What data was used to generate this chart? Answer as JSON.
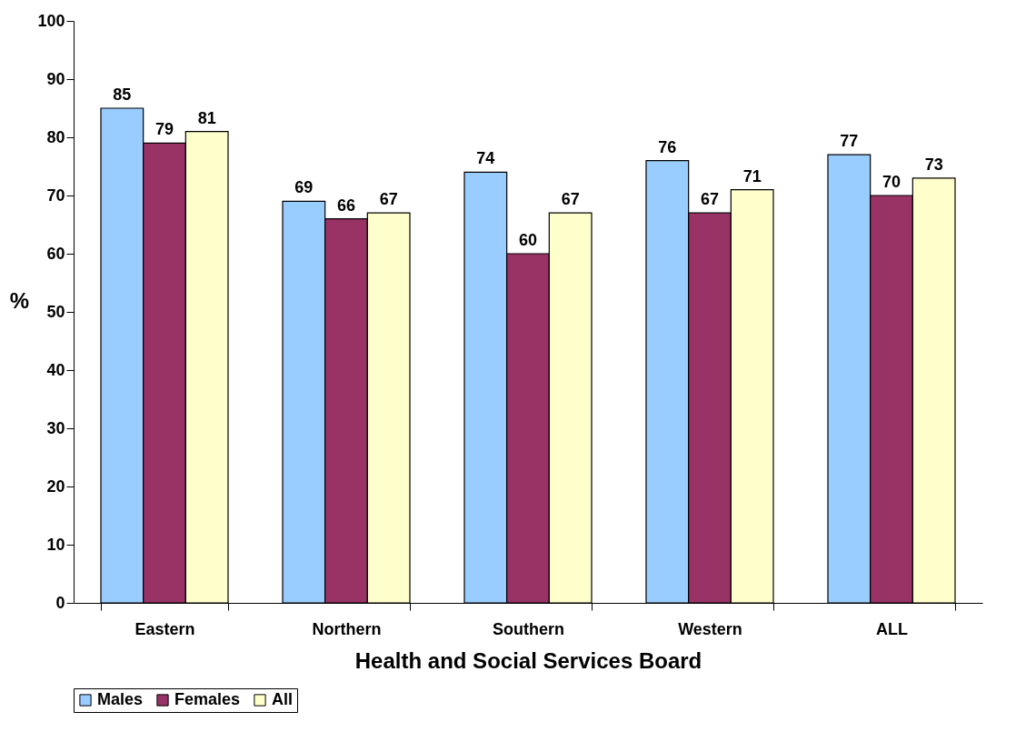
{
  "chart_data": {
    "type": "bar",
    "xlabel": "Health and Social Services Board",
    "ylabel": "%",
    "categories": [
      "Eastern",
      "Northern",
      "Southern",
      "Western",
      "ALL"
    ],
    "series": [
      {
        "name": "Males",
        "color": "#99ccff",
        "values": [
          85,
          69,
          74,
          76,
          77
        ]
      },
      {
        "name": "Females",
        "color": "#993366",
        "values": [
          79,
          66,
          60,
          67,
          70
        ]
      },
      {
        "name": "All",
        "color": "#ffffcc",
        "values": [
          81,
          67,
          67,
          71,
          73
        ]
      }
    ],
    "ylim": [
      0,
      100
    ],
    "yticks": [
      0,
      10,
      20,
      30,
      40,
      50,
      60,
      70,
      80,
      90,
      100
    ],
    "grid": false,
    "legend": "bottom",
    "data_labels": true
  }
}
